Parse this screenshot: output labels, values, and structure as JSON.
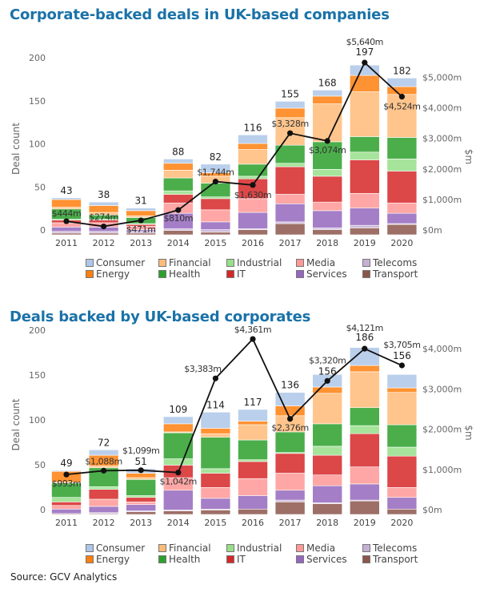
{
  "chart_data": [
    {
      "type": "bar",
      "stacked": true,
      "title": "Corporate-backed deals in UK-based companies",
      "ylabel": "Deal count",
      "y2label": "$m",
      "ylim": [
        0,
        200
      ],
      "yticks": [
        "0",
        "50",
        "100",
        "150",
        "200"
      ],
      "y2ticks": [
        "$0m",
        "$1,000m",
        "$2,000m",
        "$3,000m",
        "$4,000m",
        "$5,000m"
      ],
      "y2tick_values": [
        0,
        1000,
        2000,
        3000,
        4000,
        5000
      ],
      "categories": [
        "2011",
        "2012",
        "2013",
        "2014",
        "2015",
        "2016",
        "2017",
        "2018",
        "2019",
        "2020"
      ],
      "totals": [
        43,
        38,
        31,
        88,
        82,
        116,
        155,
        168,
        197,
        182
      ],
      "series": [
        {
          "name": "Transport",
          "values": [
            2,
            2,
            2,
            5,
            3,
            6,
            13,
            6,
            8,
            12
          ]
        },
        {
          "name": "Telecoms",
          "values": [
            2,
            2,
            2,
            2,
            3,
            1,
            2,
            2,
            3,
            1
          ]
        },
        {
          "name": "Services",
          "values": [
            5,
            5,
            2,
            18,
            9,
            19,
            21,
            20,
            20,
            12
          ]
        },
        {
          "name": "Media",
          "values": [
            5,
            5,
            4,
            12,
            14,
            16,
            11,
            10,
            17,
            12
          ]
        },
        {
          "name": "IT",
          "values": [
            3,
            3,
            2,
            10,
            13,
            23,
            32,
            30,
            39,
            37
          ]
        },
        {
          "name": "Industrial",
          "values": [
            1,
            1,
            1,
            4,
            2,
            3,
            4,
            8,
            9,
            14
          ]
        },
        {
          "name": "Health",
          "values": [
            12,
            5,
            7,
            15,
            16,
            14,
            21,
            32,
            18,
            25
          ]
        },
        {
          "name": "Financial",
          "values": [
            2,
            3,
            2,
            9,
            8,
            17,
            32,
            44,
            52,
            50
          ]
        },
        {
          "name": "Energy",
          "values": [
            9,
            8,
            6,
            8,
            4,
            7,
            11,
            9,
            19,
            9
          ]
        },
        {
          "name": "Consumer",
          "values": [
            2,
            4,
            3,
            5,
            10,
            10,
            8,
            7,
            12,
            10
          ]
        }
      ],
      "line": {
        "values": [
          444,
          274,
          471,
          810,
          1744,
          1630,
          3328,
          3074,
          5640,
          4524
        ],
        "labels": [
          "$444m",
          "$274m",
          "$471m",
          "$810m",
          "$1,744m",
          "$1,630m",
          "$3,328m",
          "$3,074m",
          "$5,640m",
          "$4,524m"
        ]
      },
      "legend": "bottom"
    },
    {
      "type": "bar",
      "stacked": true,
      "title": "Deals backed by UK-based corporates",
      "ylabel": "Deal count",
      "y2label": "$m",
      "ylim": [
        0,
        200
      ],
      "yticks": [
        "0",
        "50",
        "100",
        "150",
        "200"
      ],
      "y2ticks": [
        "$0m",
        "$1,000m",
        "$2,000m",
        "$3,000m",
        "$4,000m"
      ],
      "y2tick_values": [
        0,
        1000,
        2000,
        3000,
        4000
      ],
      "categories": [
        "2011",
        "2012",
        "2013",
        "2014",
        "2015",
        "2016",
        "2017",
        "2018",
        "2019",
        "2020"
      ],
      "totals": [
        49,
        72,
        51,
        109,
        114,
        117,
        136,
        156,
        186,
        156
      ],
      "series": [
        {
          "name": "Transport",
          "values": [
            1,
            1,
            3,
            4,
            5,
            6,
            14,
            12,
            15,
            6
          ]
        },
        {
          "name": "Telecoms",
          "values": [
            0,
            1,
            1,
            1,
            1,
            0,
            2,
            1,
            1,
            0
          ]
        },
        {
          "name": "Services",
          "values": [
            5,
            7,
            7,
            22,
            12,
            15,
            11,
            19,
            18,
            13
          ]
        },
        {
          "name": "Media",
          "values": [
            4,
            8,
            3,
            14,
            12,
            19,
            19,
            12,
            19,
            11
          ]
        },
        {
          "name": "IT",
          "values": [
            4,
            11,
            5,
            14,
            16,
            19,
            22,
            22,
            37,
            35
          ]
        },
        {
          "name": "Industrial",
          "values": [
            5,
            3,
            2,
            7,
            5,
            2,
            1,
            10,
            9,
            10
          ]
        },
        {
          "name": "Health",
          "values": [
            16,
            21,
            18,
            29,
            35,
            22,
            23,
            25,
            20,
            25
          ]
        },
        {
          "name": "Financial",
          "values": [
            1,
            2,
            2,
            1,
            4,
            17,
            18,
            34,
            40,
            36
          ]
        },
        {
          "name": "Energy",
          "values": [
            12,
            12,
            5,
            9,
            6,
            4,
            11,
            7,
            7,
            5
          ]
        },
        {
          "name": "Consumer",
          "values": [
            1,
            6,
            5,
            8,
            18,
            13,
            15,
            14,
            20,
            15
          ]
        }
      ],
      "line": {
        "values": [
          993,
          1088,
          1099,
          1042,
          3383,
          4361,
          2376,
          3320,
          4121,
          3705
        ],
        "labels": [
          "$993m",
          "$1,088m",
          "$1,099m",
          "$1,042m",
          "$3,383m",
          "$4,361m",
          "$2,376m",
          "$3,320m",
          "$4,121m",
          "$3,705m"
        ]
      },
      "legend": "bottom"
    }
  ],
  "legend_items": [
    {
      "name": "Consumer",
      "color": "#aec7e8"
    },
    {
      "name": "Energy",
      "color": "#ff7f0e"
    },
    {
      "name": "Financial",
      "color": "#ffbb78"
    },
    {
      "name": "Health",
      "color": "#2ca02c"
    },
    {
      "name": "Industrial",
      "color": "#98df8a"
    },
    {
      "name": "IT",
      "color": "#d62728"
    },
    {
      "name": "Media",
      "color": "#ff9896"
    },
    {
      "name": "Services",
      "color": "#9467bd"
    },
    {
      "name": "Telecoms",
      "color": "#c5b0d5"
    },
    {
      "name": "Transport",
      "color": "#8c564b"
    }
  ],
  "title_color": "#1a72a8",
  "source": "Source: GCV Analytics"
}
